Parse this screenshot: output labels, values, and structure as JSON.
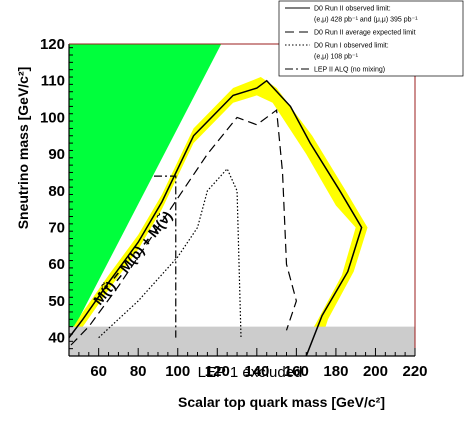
{
  "chart_data": {
    "type": "line",
    "xlabel": "Scalar top quark mass [GeV/c²]",
    "ylabel": "Sneutrino mass [GeV/c²]",
    "xlim": [
      45,
      220
    ],
    "ylim": [
      35,
      120
    ],
    "xticks": [
      "60",
      "80",
      "100",
      "120",
      "140",
      "160",
      "180",
      "200",
      "220"
    ],
    "yticks": [
      "40",
      "50",
      "60",
      "70",
      "80",
      "90",
      "100",
      "110",
      "120"
    ],
    "grid": false,
    "legend_position": "top-right",
    "legend": [
      "D0 Run II observed limit:",
      "(e,μ) 428 pb⁻¹ and (μ,μ) 395 pb⁻¹",
      "D0 Run II average expected limit",
      "D0 Run I observed limit:",
      "(e,μ) 108 pb⁻¹",
      "LEP II ALQ (no mixing)"
    ],
    "annotations": {
      "lep1": "LEP 1 excluded",
      "kinematic": "M(t̃) = M(b) + M(ν̃)"
    },
    "kinematic_line": {
      "x": [
        45,
        122
      ],
      "y": [
        40,
        120
      ]
    },
    "lep1_band": {
      "ylim": [
        35,
        43
      ]
    },
    "yellow_band": {
      "upper": [
        [
          45,
          41
        ],
        [
          52,
          47
        ],
        [
          65,
          57
        ],
        [
          80,
          68
        ],
        [
          92,
          79
        ],
        [
          108,
          97
        ],
        [
          128,
          108
        ],
        [
          142,
          111
        ],
        [
          150,
          108
        ],
        [
          168,
          95
        ],
        [
          185,
          80
        ],
        [
          196,
          70
        ],
        [
          189,
          58
        ],
        [
          176,
          45
        ],
        [
          170,
          35
        ]
      ],
      "lower": [
        [
          45,
          37
        ],
        [
          52,
          43
        ],
        [
          65,
          53
        ],
        [
          80,
          64
        ],
        [
          92,
          75
        ],
        [
          108,
          93
        ],
        [
          128,
          104
        ],
        [
          140,
          106
        ],
        [
          148,
          104
        ],
        [
          165,
          90
        ],
        [
          180,
          76
        ],
        [
          190,
          70
        ],
        [
          183,
          57
        ],
        [
          170,
          44
        ],
        [
          160,
          35
        ]
      ]
    },
    "series": [
      {
        "name": "D0 Run II observed limit",
        "style": "solid",
        "x": [
          45,
          52,
          65,
          80,
          92,
          108,
          128,
          140,
          145,
          157,
          167,
          182,
          193,
          186,
          173,
          165
        ],
        "y": [
          40,
          45,
          55,
          66,
          77,
          95,
          106,
          108,
          110,
          103,
          93,
          80,
          70,
          58,
          46,
          35
        ]
      },
      {
        "name": "D0 Run II average expected limit",
        "style": "dashed",
        "x": [
          46,
          55,
          70,
          85,
          100,
          115,
          130,
          140,
          150,
          153,
          155,
          160,
          155
        ],
        "y": [
          38,
          43,
          54,
          66,
          78,
          90,
          100,
          98,
          102,
          85,
          60,
          50,
          42
        ]
      },
      {
        "name": "D0 Run I observed limit",
        "style": "dotted",
        "x": [
          60,
          70,
          80,
          90,
          100,
          110,
          115,
          120,
          125,
          130,
          131,
          132
        ],
        "y": [
          40,
          45,
          50,
          56,
          62,
          70,
          80,
          83,
          86,
          80,
          60,
          40
        ]
      },
      {
        "name": "LEP II ALQ (no mixing)",
        "style": "dashdot",
        "x": [
          88,
          99,
          99
        ],
        "y": [
          84,
          84,
          40
        ]
      }
    ]
  }
}
